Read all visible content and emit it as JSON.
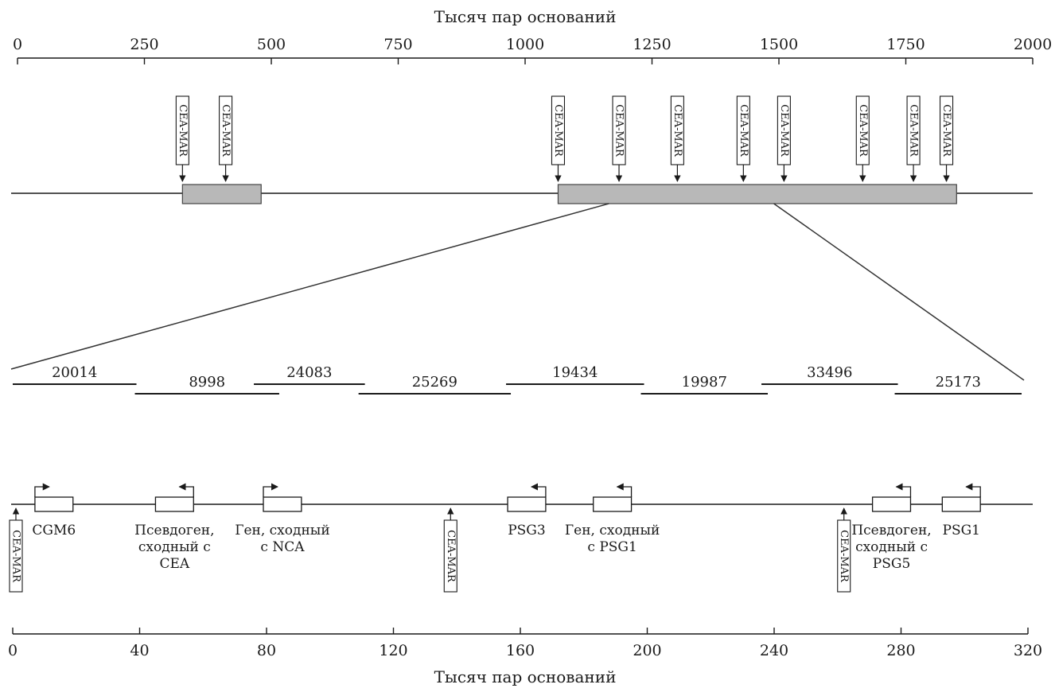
{
  "top_axis": {
    "title": "Тысяч пар оснований",
    "ticks": [
      "0",
      "250",
      "500",
      "750",
      "1000",
      "1250",
      "1500",
      "1750",
      "2000"
    ],
    "min": 0,
    "max": 2000
  },
  "mar_label": "CEA-MAR",
  "chromosome": {
    "blocks": [
      {
        "start_kb": 325,
        "end_kb": 480
      },
      {
        "start_kb": 1065,
        "end_kb": 1850
      }
    ],
    "mar_sites_kb": [
      325,
      410,
      1065,
      1185,
      1300,
      1430,
      1510,
      1665,
      1765,
      1830
    ],
    "zoom_region_kb": [
      1165,
      1490
    ],
    "block_color": "#b8b8b8"
  },
  "contigs": [
    {
      "label": "20014",
      "start_kb": 0,
      "end_kb": 39
    },
    {
      "label": "8998",
      "start_kb": 38.5,
      "end_kb": 84
    },
    {
      "label": "24083",
      "start_kb": 76,
      "end_kb": 111
    },
    {
      "label": "25269",
      "start_kb": 109,
      "end_kb": 157
    },
    {
      "label": "19434",
      "start_kb": 155.5,
      "end_kb": 199
    },
    {
      "label": "19987",
      "start_kb": 198,
      "end_kb": 238
    },
    {
      "label": "33496",
      "start_kb": 236,
      "end_kb": 279
    },
    {
      "label": "25173",
      "start_kb": 278,
      "end_kb": 318
    }
  ],
  "genes": [
    {
      "name": "CGM6",
      "start_kb": 7,
      "end_kb": 19,
      "direction": "right",
      "label_lines": [
        "CGM6"
      ]
    },
    {
      "name": "pseudo-cea",
      "start_kb": 45,
      "end_kb": 57,
      "direction": "left",
      "label_lines": [
        "Псевдоген,",
        "сходный с",
        "CEA"
      ]
    },
    {
      "name": "nca-like",
      "start_kb": 79,
      "end_kb": 91,
      "direction": "right",
      "label_lines": [
        "Ген, сходный",
        "с NCA"
      ]
    },
    {
      "name": "PSG3",
      "start_kb": 156,
      "end_kb": 168,
      "direction": "left",
      "label_lines": [
        "PSG3"
      ]
    },
    {
      "name": "psg1-like",
      "start_kb": 183,
      "end_kb": 195,
      "direction": "left",
      "label_lines": [
        "Ген, сходный",
        "с PSG1"
      ]
    },
    {
      "name": "pseudo-psg5",
      "start_kb": 271,
      "end_kb": 283,
      "direction": "left",
      "label_lines": [
        "Псевдоген,",
        "сходный с",
        "PSG5"
      ]
    },
    {
      "name": "PSG1",
      "start_kb": 293,
      "end_kb": 305,
      "direction": "left",
      "label_lines": [
        "PSG1"
      ]
    }
  ],
  "bottom_mar_sites_kb": [
    1,
    138,
    262
  ],
  "bottom_axis": {
    "title": "Тысяч пар оснований",
    "ticks": [
      "0",
      "40",
      "80",
      "120",
      "160",
      "200",
      "240",
      "280",
      "320"
    ],
    "min": 0,
    "max": 320
  }
}
